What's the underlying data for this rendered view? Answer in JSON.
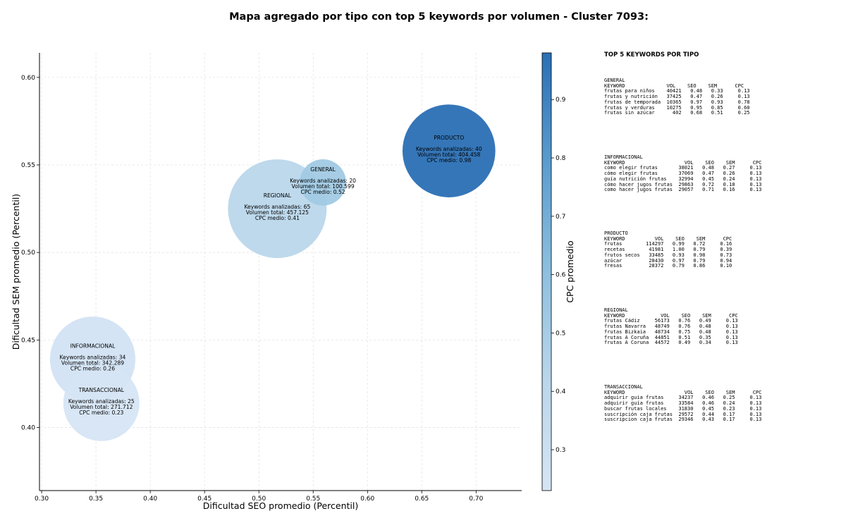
{
  "chart_data": {
    "type": "scatter",
    "title": "Mapa agregado por tipo con top 5 keywords por volumen - Cluster 7093:",
    "xlabel": "Dificultad SEO promedio (Percentil)",
    "ylabel": "Dificultad SEM promedio (Percentil)",
    "xlim": [
      0.298,
      0.742
    ],
    "ylim": [
      0.364,
      0.614
    ],
    "xticks": [
      "0.30",
      "0.35",
      "0.40",
      "0.45",
      "0.50",
      "0.55",
      "0.60",
      "0.65",
      "0.70"
    ],
    "yticks": [
      "0.40",
      "0.45",
      "0.50",
      "0.55",
      "0.60"
    ],
    "grid": true,
    "colorbar": {
      "label": "CPC promedio",
      "range": [
        0.23,
        0.98
      ],
      "ticks": [
        "0.3",
        "0.4",
        "0.5",
        "0.6",
        "0.7",
        "0.8",
        "0.9"
      ],
      "colormap": "Blues"
    },
    "points": [
      {
        "label": "INFORMACIONAL",
        "x": 0.347,
        "y": 0.439,
        "keywords": 34,
        "volume_text": "342.289",
        "cpc": 0.26,
        "lines": [
          "Keywords analizadas: 34",
          "Volumen total: 342.289",
          "CPC medio: 0.26"
        ]
      },
      {
        "label": "TRANSACCIONAL",
        "x": 0.355,
        "y": 0.414,
        "keywords": 25,
        "volume_text": "271.712",
        "cpc": 0.23,
        "lines": [
          "Keywords analizadas: 25",
          "Volumen total: 271.712",
          "CPC medio: 0.23"
        ]
      },
      {
        "label": "REGIONAL",
        "x": 0.517,
        "y": 0.525,
        "keywords": 65,
        "volume_text": "457.125",
        "cpc": 0.41,
        "lines": [
          "Keywords analizadas: 65",
          "Volumen total: 457.125",
          "CPC medio: 0.41"
        ]
      },
      {
        "label": "GENERAL",
        "x": 0.559,
        "y": 0.54,
        "keywords": 20,
        "volume_text": "100.599",
        "cpc": 0.52,
        "lines": [
          "Keywords analizadas: 20",
          "Volumen total: 100.599",
          "CPC medio: 0.52"
        ]
      },
      {
        "label": "PRODUCTO",
        "x": 0.675,
        "y": 0.558,
        "keywords": 40,
        "volume_text": "404.458",
        "cpc": 0.98,
        "lines": [
          "Keywords analizadas: 40",
          "Volumen total: 404.458",
          "CPC medio: 0.98"
        ]
      }
    ]
  },
  "side_panel": {
    "title": "TOP 5 KEYWORDS POR TIPO",
    "blocks": [
      {
        "text": "GENERAL\nKEYWORD              VOL    SEO    SEM      CPC\nfrutas para niños    40421   0.48   0.33     0.13\nfrutas y nutrición   37425   0.47   0.26     0.13\nfrutas de temporada  10365   0.97   0.93     0.78\nfrutas y verduras    10275   0.95   0.85     0.60\nfrutas sin azúcar      402   0.68   0.51     0.25"
      },
      {
        "text": "INFORMACIONAL\nKEYWORD                    VOL    SEO    SEM      CPC\ncomo elegir frutas       38021   0.48   0.27     0.13\ncómo elegir frutas       37069   0.47   0.26     0.13\nguía nutrición frutas    32994   0.45   0.24     0.13\ncómo hacer jugos frutas  29863   0.72   0.18     0.13\ncomo hacer jugos frutas  29057   0.71   0.16     0.13"
      },
      {
        "text": "PRODUCTO\nKEYWORD          VOL    SEO    SEM      CPC\nfrutas        114297   0.99   0.72     0.16\nrecetas        41981   1.00   0.79     0.39\nfrutos secos   33485   0.93   0.98     0.73\nazúcar         28430   0.97   0.79     0.94\nfresas         28372   0.79   0.86     0.10"
      },
      {
        "text": "REGIONAL\nKEYWORD            VOL    SEO    SEM      CPC\nfrutas Cádiz     56173   0.76   0.49     0.13\nfrutas Navarra   48749   0.76   0.48     0.13\nfrutas Bizkaia   48734   0.75   0.48     0.13\nfrutas A Coruña  44851   0.51   0.35     0.13\nfrutas A Coruna  44572   0.49   0.34     0.13"
      },
      {
        "text": "TRANSACCIONAL\nKEYWORD                    VOL    SEO    SEM      CPC\nadquirir guia frutas     34237   0.46   0.25     0.13\nadquirir guía frutas     33584   0.46   0.24     0.13\nbuscar frutas locales    31830   0.45   0.23     0.13\nsuscripción caja frutas  29572   0.44   0.17     0.13\nsuscripcion caja frutas  29346   0.43   0.17     0.13"
      }
    ]
  }
}
